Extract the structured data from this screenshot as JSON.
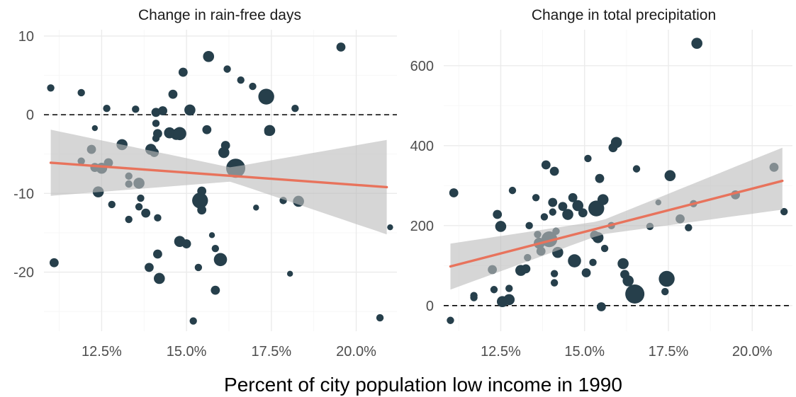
{
  "colors": {
    "point": "#263f4b",
    "fit": "#e8735c",
    "band": "#bdbdbd",
    "grid": "#ebebeb"
  },
  "figure": {
    "xlabel": "Percent of city population low income in 1990"
  },
  "chart_data": [
    {
      "type": "scatter",
      "title": "Change in rain-free days",
      "xlabel": "Percent of city population low income in 1990",
      "ylabel": "",
      "x_unit": "%",
      "xlim": [
        10.8,
        21.2
      ],
      "ylim": [
        -27.5,
        10.8
      ],
      "x_ticks": [
        12.5,
        15.0,
        17.5,
        20.0
      ],
      "x_tick_labels": [
        "12.5%",
        "15.0%",
        "17.5%",
        "20.0%"
      ],
      "y_ticks": [
        -20,
        -10,
        0,
        10
      ],
      "y_tick_labels": [
        "-20",
        "-10",
        "0",
        "10"
      ],
      "grid": true,
      "reference_line": {
        "y": 0,
        "style": "dashed"
      },
      "fit_line": {
        "x": [
          11.0,
          20.9
        ],
        "y": [
          -6.1,
          -9.2
        ]
      },
      "confidence_band": {
        "x": [
          11.0,
          16.3,
          20.9
        ],
        "lower": [
          -10.3,
          -8.5,
          -15.2
        ],
        "upper": [
          -1.9,
          -6.7,
          -3.2
        ]
      },
      "points": [
        {
          "x": 11.0,
          "y": 3.4,
          "s": 2
        },
        {
          "x": 11.1,
          "y": -18.8,
          "s": 3
        },
        {
          "x": 11.9,
          "y": 2.8,
          "s": 2
        },
        {
          "x": 11.9,
          "y": -5.9,
          "s": 2
        },
        {
          "x": 12.3,
          "y": -1.7,
          "s": 1
        },
        {
          "x": 12.2,
          "y": -4.4,
          "s": 3
        },
        {
          "x": 12.3,
          "y": -6.7,
          "s": 3
        },
        {
          "x": 12.5,
          "y": -6.8,
          "s": 4
        },
        {
          "x": 12.7,
          "y": -6.1,
          "s": 3
        },
        {
          "x": 12.4,
          "y": -9.8,
          "s": 4
        },
        {
          "x": 12.65,
          "y": 0.8,
          "s": 2
        },
        {
          "x": 12.8,
          "y": -11.4,
          "s": 2
        },
        {
          "x": 13.1,
          "y": -3.8,
          "s": 4
        },
        {
          "x": 13.3,
          "y": -7.8,
          "s": 2
        },
        {
          "x": 13.3,
          "y": -8.8,
          "s": 2
        },
        {
          "x": 13.3,
          "y": -13.3,
          "s": 2
        },
        {
          "x": 13.5,
          "y": 0.7,
          "s": 2
        },
        {
          "x": 13.6,
          "y": -8.7,
          "s": 4
        },
        {
          "x": 13.6,
          "y": -11.7,
          "s": 2
        },
        {
          "x": 13.65,
          "y": -10.6,
          "s": 2
        },
        {
          "x": 13.8,
          "y": -12.5,
          "s": 3
        },
        {
          "x": 13.9,
          "y": -19.4,
          "s": 3
        },
        {
          "x": 13.95,
          "y": -4.4,
          "s": 4
        },
        {
          "x": 14.05,
          "y": -4.8,
          "s": 3
        },
        {
          "x": 14.1,
          "y": 0.3,
          "s": 3
        },
        {
          "x": 14.1,
          "y": -1.1,
          "s": 2
        },
        {
          "x": 14.15,
          "y": -2.4,
          "s": 3
        },
        {
          "x": 14.1,
          "y": -3.0,
          "s": 2
        },
        {
          "x": 14.15,
          "y": -13.1,
          "s": 2
        },
        {
          "x": 14.15,
          "y": -17.7,
          "s": 3
        },
        {
          "x": 14.2,
          "y": -20.8,
          "s": 4
        },
        {
          "x": 14.3,
          "y": 0.5,
          "s": 3
        },
        {
          "x": 14.5,
          "y": -2.3,
          "s": 4
        },
        {
          "x": 14.6,
          "y": 2.6,
          "s": 3
        },
        {
          "x": 14.7,
          "y": -2.5,
          "s": 4
        },
        {
          "x": 14.8,
          "y": -2.4,
          "s": 5
        },
        {
          "x": 14.8,
          "y": -16.1,
          "s": 4
        },
        {
          "x": 14.9,
          "y": 5.4,
          "s": 3
        },
        {
          "x": 15.0,
          "y": -16.4,
          "s": 3
        },
        {
          "x": 15.1,
          "y": 0.6,
          "s": 4
        },
        {
          "x": 15.2,
          "y": -26.2,
          "s": 2
        },
        {
          "x": 15.35,
          "y": -19.4,
          "s": 2
        },
        {
          "x": 15.45,
          "y": -9.7,
          "s": 3
        },
        {
          "x": 15.4,
          "y": -10.9,
          "s": 6
        },
        {
          "x": 15.45,
          "y": -12.1,
          "s": 3
        },
        {
          "x": 15.6,
          "y": -1.9,
          "s": 3
        },
        {
          "x": 15.65,
          "y": 7.4,
          "s": 4
        },
        {
          "x": 15.75,
          "y": -15.3,
          "s": 1
        },
        {
          "x": 15.85,
          "y": -17.0,
          "s": 2
        },
        {
          "x": 15.85,
          "y": -22.3,
          "s": 3
        },
        {
          "x": 16.0,
          "y": -18.4,
          "s": 5
        },
        {
          "x": 16.1,
          "y": -4.8,
          "s": 4
        },
        {
          "x": 16.15,
          "y": -3.9,
          "s": 3
        },
        {
          "x": 16.2,
          "y": 5.8,
          "s": 2
        },
        {
          "x": 16.45,
          "y": -6.8,
          "s": 7
        },
        {
          "x": 16.6,
          "y": 4.4,
          "s": 2
        },
        {
          "x": 16.95,
          "y": 3.6,
          "s": 2
        },
        {
          "x": 17.05,
          "y": -11.8,
          "s": 1
        },
        {
          "x": 17.35,
          "y": 2.3,
          "s": 6
        },
        {
          "x": 17.45,
          "y": -2.0,
          "s": 4
        },
        {
          "x": 17.4,
          "y": -2.2,
          "s": 2
        },
        {
          "x": 17.85,
          "y": -10.9,
          "s": 2
        },
        {
          "x": 18.05,
          "y": -20.2,
          "s": 1
        },
        {
          "x": 18.2,
          "y": 0.8,
          "s": 2
        },
        {
          "x": 18.3,
          "y": -11.0,
          "s": 4
        },
        {
          "x": 19.55,
          "y": 8.6,
          "s": 3
        },
        {
          "x": 20.7,
          "y": -25.8,
          "s": 2
        },
        {
          "x": 21.0,
          "y": -14.3,
          "s": 1
        }
      ]
    },
    {
      "type": "scatter",
      "title": "Change in total precipitation",
      "xlabel": "Percent of city population low income in 1990",
      "ylabel": "",
      "x_unit": "%",
      "xlim": [
        10.8,
        21.2
      ],
      "ylim": [
        -64,
        690
      ],
      "x_ticks": [
        12.5,
        15.0,
        17.5,
        20.0
      ],
      "x_tick_labels": [
        "12.5%",
        "15.0%",
        "17.5%",
        "20.0%"
      ],
      "y_ticks": [
        0,
        200,
        400,
        600
      ],
      "y_tick_labels": [
        "0",
        "200",
        "400",
        "600"
      ],
      "grid": true,
      "reference_line": {
        "y": 0,
        "style": "dashed"
      },
      "fit_line": {
        "x": [
          11.0,
          20.9
        ],
        "y": [
          98,
          312
        ]
      },
      "confidence_band": {
        "x": [
          11.0,
          15.5,
          20.9
        ],
        "lower": [
          40,
          178,
          240
        ],
        "upper": [
          155,
          212,
          395
        ]
      },
      "points": [
        {
          "x": 11.0,
          "y": -37,
          "s": 2
        },
        {
          "x": 11.1,
          "y": 282,
          "s": 3
        },
        {
          "x": 11.7,
          "y": 25,
          "s": 2
        },
        {
          "x": 11.7,
          "y": 20,
          "s": 2
        },
        {
          "x": 12.25,
          "y": 90,
          "s": 3
        },
        {
          "x": 12.3,
          "y": 40,
          "s": 2
        },
        {
          "x": 12.4,
          "y": 228,
          "s": 3
        },
        {
          "x": 12.5,
          "y": 198,
          "s": 4
        },
        {
          "x": 12.55,
          "y": 10,
          "s": 4
        },
        {
          "x": 12.75,
          "y": 15,
          "s": 4
        },
        {
          "x": 12.75,
          "y": 43,
          "s": 2
        },
        {
          "x": 12.85,
          "y": 288,
          "s": 2
        },
        {
          "x": 13.1,
          "y": 88,
          "s": 4
        },
        {
          "x": 13.25,
          "y": 92,
          "s": 3
        },
        {
          "x": 13.3,
          "y": 120,
          "s": 2
        },
        {
          "x": 13.35,
          "y": 200,
          "s": 2
        },
        {
          "x": 13.55,
          "y": 270,
          "s": 2
        },
        {
          "x": 13.6,
          "y": 178,
          "s": 2
        },
        {
          "x": 13.65,
          "y": 156,
          "s": 4
        },
        {
          "x": 13.7,
          "y": 136,
          "s": 3
        },
        {
          "x": 13.8,
          "y": 222,
          "s": 2
        },
        {
          "x": 13.85,
          "y": 352,
          "s": 3
        },
        {
          "x": 13.95,
          "y": 166,
          "s": 6
        },
        {
          "x": 14.05,
          "y": 258,
          "s": 3
        },
        {
          "x": 14.05,
          "y": 234,
          "s": 2
        },
        {
          "x": 14.1,
          "y": 336,
          "s": 3
        },
        {
          "x": 14.15,
          "y": 186,
          "s": 2
        },
        {
          "x": 14.1,
          "y": 80,
          "s": 2
        },
        {
          "x": 14.1,
          "y": 57,
          "s": 2
        },
        {
          "x": 14.2,
          "y": 133,
          "s": 4
        },
        {
          "x": 14.35,
          "y": 248,
          "s": 3
        },
        {
          "x": 14.5,
          "y": 228,
          "s": 4
        },
        {
          "x": 14.65,
          "y": 270,
          "s": 3
        },
        {
          "x": 14.7,
          "y": 112,
          "s": 5
        },
        {
          "x": 14.8,
          "y": 250,
          "s": 4
        },
        {
          "x": 14.95,
          "y": 232,
          "s": 3
        },
        {
          "x": 15.05,
          "y": 82,
          "s": 3
        },
        {
          "x": 15.1,
          "y": 368,
          "s": 2
        },
        {
          "x": 15.25,
          "y": 108,
          "s": 2
        },
        {
          "x": 15.3,
          "y": 176,
          "s": 3
        },
        {
          "x": 15.35,
          "y": 243,
          "s": 6
        },
        {
          "x": 15.4,
          "y": 170,
          "s": 4
        },
        {
          "x": 15.45,
          "y": 318,
          "s": 3
        },
        {
          "x": 15.5,
          "y": -3,
          "s": 3
        },
        {
          "x": 15.55,
          "y": 265,
          "s": 4
        },
        {
          "x": 15.6,
          "y": 143,
          "s": 2
        },
        {
          "x": 15.8,
          "y": 200,
          "s": 2
        },
        {
          "x": 15.85,
          "y": 395,
          "s": 3
        },
        {
          "x": 15.95,
          "y": 408,
          "s": 4
        },
        {
          "x": 16.15,
          "y": 105,
          "s": 4
        },
        {
          "x": 16.2,
          "y": 78,
          "s": 3
        },
        {
          "x": 16.3,
          "y": 62,
          "s": 4
        },
        {
          "x": 16.5,
          "y": 29,
          "s": 7
        },
        {
          "x": 16.55,
          "y": 342,
          "s": 2
        },
        {
          "x": 16.95,
          "y": 198,
          "s": 2
        },
        {
          "x": 17.2,
          "y": 258,
          "s": 1
        },
        {
          "x": 17.4,
          "y": 35,
          "s": 2
        },
        {
          "x": 17.45,
          "y": 67,
          "s": 6
        },
        {
          "x": 17.55,
          "y": 325,
          "s": 4
        },
        {
          "x": 17.85,
          "y": 217,
          "s": 3
        },
        {
          "x": 18.1,
          "y": 195,
          "s": 2
        },
        {
          "x": 18.25,
          "y": 255,
          "s": 2
        },
        {
          "x": 18.35,
          "y": 656,
          "s": 4
        },
        {
          "x": 19.5,
          "y": 277,
          "s": 3
        },
        {
          "x": 20.65,
          "y": 346,
          "s": 3
        },
        {
          "x": 20.95,
          "y": 235,
          "s": 2
        }
      ]
    }
  ]
}
